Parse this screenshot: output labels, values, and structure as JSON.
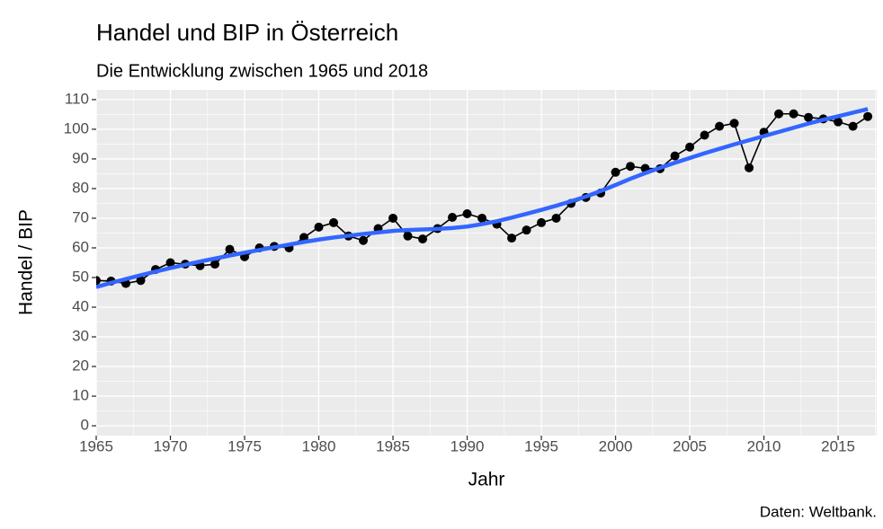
{
  "chart_data": {
    "type": "line",
    "title": "Handel und BIP in Österreich",
    "subtitle": "Die Entwicklung zwischen 1965 und 2018",
    "x_label": "Jahr",
    "y_label": "Handel / BIP",
    "caption": "Daten: Weltbank.",
    "x": [
      1965,
      1966,
      1967,
      1968,
      1969,
      1970,
      1971,
      1972,
      1973,
      1974,
      1975,
      1976,
      1977,
      1978,
      1979,
      1980,
      1981,
      1982,
      1983,
      1984,
      1985,
      1986,
      1987,
      1988,
      1989,
      1990,
      1991,
      1992,
      1993,
      1994,
      1995,
      1996,
      1997,
      1998,
      1999,
      2000,
      2001,
      2002,
      2003,
      2004,
      2005,
      2006,
      2007,
      2008,
      2009,
      2010,
      2011,
      2012,
      2013,
      2014,
      2015,
      2016,
      2017
    ],
    "series": [
      {
        "color": "#000000",
        "markers": true,
        "values": [
          49,
          48.8,
          48,
          49,
          52.7,
          55,
          54.5,
          54,
          54.5,
          59.5,
          57,
          60,
          60.5,
          60,
          63.5,
          67,
          68.5,
          64,
          62.5,
          66.5,
          70,
          64,
          63,
          66.5,
          70.3,
          71.5,
          70,
          68,
          63.3,
          66,
          68.5,
          70,
          75,
          77,
          78.5,
          85.5,
          87.5,
          86.8,
          86.7,
          91,
          94,
          98,
          101,
          102,
          87,
          99,
          105.2,
          105.2,
          104,
          103.5,
          102.5,
          101,
          104.3
        ]
      },
      {
        "color": "#3366FF",
        "markers": false,
        "values": [
          46.8,
          48.2,
          49.5,
          50.8,
          52,
          53.2,
          54.3,
          55.4,
          56.4,
          57.4,
          58.4,
          59.3,
          60.2,
          61.1,
          62,
          62.8,
          63.5,
          64.1,
          64.7,
          65.2,
          65.7,
          66,
          66.2,
          66.4,
          66.7,
          67.2,
          68,
          69,
          70.2,
          71.5,
          72.8,
          74.2,
          75.7,
          77.3,
          79.2,
          81.2,
          83.3,
          85.2,
          87,
          88.7,
          90.3,
          91.9,
          93.4,
          94.9,
          96.3,
          97.7,
          99.1,
          100.5,
          101.9,
          103.2,
          104.4,
          105.6,
          106.8
        ]
      }
    ],
    "xlim": [
      1965,
      2017.6
    ],
    "xticks": [
      1965,
      1970,
      1975,
      1980,
      1985,
      1990,
      1995,
      2000,
      2005,
      2010,
      2015
    ],
    "ylim": [
      -3.3,
      113.3
    ],
    "yticks": [
      0,
      10,
      20,
      30,
      40,
      50,
      60,
      70,
      80,
      90,
      100,
      110
    ],
    "grid": true
  }
}
